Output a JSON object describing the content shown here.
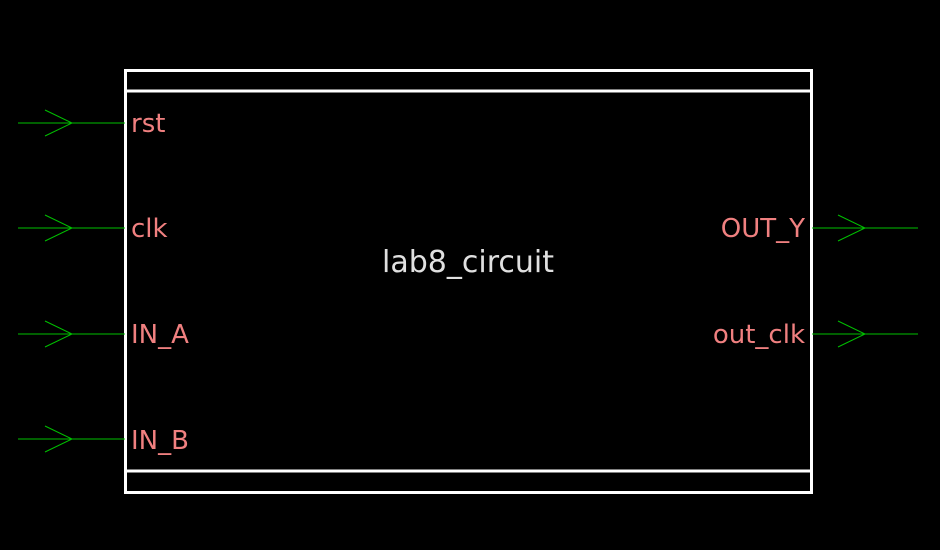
{
  "block": {
    "name": "lab8_circuit"
  },
  "inputs": [
    {
      "label": "rst"
    },
    {
      "label": "clk"
    },
    {
      "label": "IN_A"
    },
    {
      "label": "IN_B"
    }
  ],
  "outputs": [
    {
      "label": "OUT_Y"
    },
    {
      "label": "out_clk"
    }
  ],
  "colors": {
    "background": "#000000",
    "border": "#ffffff",
    "wire": "#00c000",
    "port_label": "#f08080",
    "title": "#e0e0e0"
  }
}
